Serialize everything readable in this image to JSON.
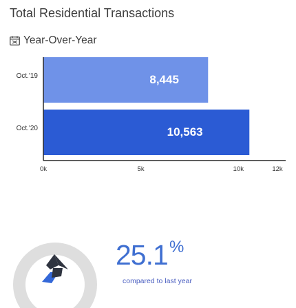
{
  "header": {
    "title": "Total Residential Transactions",
    "subtitle": "Year-Over-Year"
  },
  "chart_data": {
    "type": "bar",
    "orientation": "horizontal",
    "categories": [
      "Oct.'19",
      "Oct.'20"
    ],
    "values": [
      8445,
      10563
    ],
    "value_labels": [
      "8,445",
      "10,563"
    ],
    "tick_labels": [
      "0k",
      "5k",
      "10k",
      "12k"
    ],
    "tick_values": [
      0,
      5000,
      10000,
      12000
    ],
    "xlim": [
      0,
      12000
    ],
    "colors": [
      "#6f92e8",
      "#2b5bd4"
    ],
    "grid": false
  },
  "kpi": {
    "value": "25.1",
    "unit": "%",
    "caption": "compared to last year",
    "trend_icon": "up-right-arrow-icon",
    "accent": "#3f6fd1"
  }
}
